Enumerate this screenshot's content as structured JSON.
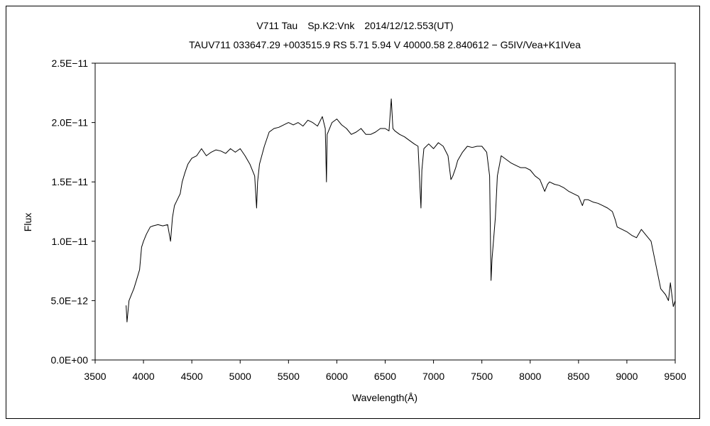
{
  "chart_data": {
    "type": "line",
    "title": "V711 Tau　Sp.K2:Vnk　2014/12/12.553(UT)",
    "subtitle": "TAUV711 033647.29 +003515.9 RS 5.71 5.94 V 40000.58 2.840612 − G5IV/Vea+K1IVea",
    "xlabel": "Wavelength(Å)",
    "ylabel": "Flux",
    "xlim": [
      3500,
      9500
    ],
    "ylim": [
      0,
      2.5e-11
    ],
    "x_ticks": [
      3500,
      4000,
      4500,
      5000,
      5500,
      6000,
      6500,
      7000,
      7500,
      8000,
      8500,
      9000,
      9500
    ],
    "x_tick_labels": [
      "3500",
      "4000",
      "4500",
      "5000",
      "5500",
      "6000",
      "6500",
      "7000",
      "7500",
      "8000",
      "8500",
      "9000",
      "9500"
    ],
    "y_ticks": [
      0,
      5e-12,
      1e-11,
      1.5e-11,
      2e-11,
      2.5e-11
    ],
    "y_tick_labels": [
      "0.0E+00",
      "5.0E−12",
      "1.0E−11",
      "1.5E−11",
      "2.0E−11",
      "2.5E−11"
    ],
    "grid": false,
    "legend": "none",
    "line_color": "#000000",
    "series": [
      {
        "x": [
          3820,
          3830,
          3850,
          3880,
          3900,
          3930,
          3960,
          3980,
          4000,
          4030,
          4070,
          4100,
          4150,
          4200,
          4250,
          4280,
          4300,
          4320,
          4350,
          4380,
          4400,
          4430,
          4460,
          4500,
          4550,
          4600,
          4650,
          4700,
          4750,
          4800,
          4850,
          4900,
          4950,
          5000,
          5050,
          5100,
          5150,
          5170,
          5180,
          5200,
          5250,
          5300,
          5350,
          5400,
          5450,
          5500,
          5550,
          5600,
          5650,
          5700,
          5750,
          5800,
          5850,
          5880,
          5893,
          5900,
          5950,
          6000,
          6050,
          6100,
          6150,
          6200,
          6250,
          6300,
          6350,
          6400,
          6450,
          6500,
          6540,
          6563,
          6580,
          6600,
          6650,
          6700,
          6750,
          6800,
          6840,
          6870,
          6880,
          6900,
          6950,
          7000,
          7050,
          7100,
          7150,
          7180,
          7200,
          7230,
          7250,
          7300,
          7350,
          7400,
          7450,
          7500,
          7550,
          7580,
          7595,
          7605,
          7620,
          7640,
          7660,
          7700,
          7750,
          7800,
          7850,
          7900,
          7950,
          8000,
          8050,
          8100,
          8150,
          8180,
          8200,
          8250,
          8300,
          8350,
          8400,
          8450,
          8500,
          8540,
          8560,
          8600,
          8650,
          8700,
          8750,
          8800,
          8850,
          8880,
          8900,
          8950,
          9000,
          9050,
          9100,
          9150,
          9200,
          9250,
          9300,
          9350,
          9400,
          9430,
          9450,
          9480,
          9500
        ],
        "y": [
          4.6e-12,
          3.2e-12,
          5e-12,
          5.6e-12,
          6e-12,
          6.8e-12,
          7.6e-12,
          9.5e-12,
          1e-11,
          1.06e-11,
          1.12e-11,
          1.13e-11,
          1.14e-11,
          1.13e-11,
          1.14e-11,
          1e-11,
          1.2e-11,
          1.3e-11,
          1.35e-11,
          1.4e-11,
          1.5e-11,
          1.58e-11,
          1.65e-11,
          1.7e-11,
          1.72e-11,
          1.78e-11,
          1.72e-11,
          1.75e-11,
          1.77e-11,
          1.76e-11,
          1.74e-11,
          1.78e-11,
          1.75e-11,
          1.78e-11,
          1.72e-11,
          1.65e-11,
          1.55e-11,
          1.28e-11,
          1.5e-11,
          1.65e-11,
          1.8e-11,
          1.92e-11,
          1.95e-11,
          1.96e-11,
          1.98e-11,
          2e-11,
          1.98e-11,
          2e-11,
          1.97e-11,
          2.02e-11,
          2e-11,
          1.97e-11,
          2.05e-11,
          1.95e-11,
          1.5e-11,
          1.9e-11,
          2e-11,
          2.03e-11,
          1.98e-11,
          1.95e-11,
          1.9e-11,
          1.92e-11,
          1.95e-11,
          1.9e-11,
          1.9e-11,
          1.92e-11,
          1.95e-11,
          1.95e-11,
          1.93e-11,
          2.2e-11,
          1.95e-11,
          1.93e-11,
          1.9e-11,
          1.88e-11,
          1.85e-11,
          1.82e-11,
          1.8e-11,
          1.28e-11,
          1.6e-11,
          1.78e-11,
          1.82e-11,
          1.78e-11,
          1.83e-11,
          1.8e-11,
          1.72e-11,
          1.52e-11,
          1.55e-11,
          1.62e-11,
          1.68e-11,
          1.75e-11,
          1.8e-11,
          1.79e-11,
          1.8e-11,
          1.8e-11,
          1.75e-11,
          1.55e-11,
          6.7e-12,
          8.5e-12,
          1e-11,
          1.2e-11,
          1.55e-11,
          1.72e-11,
          1.69e-11,
          1.66e-11,
          1.64e-11,
          1.62e-11,
          1.62e-11,
          1.6e-11,
          1.55e-11,
          1.52e-11,
          1.42e-11,
          1.48e-11,
          1.5e-11,
          1.48e-11,
          1.47e-11,
          1.45e-11,
          1.42e-11,
          1.4e-11,
          1.38e-11,
          1.3e-11,
          1.35e-11,
          1.35e-11,
          1.33e-11,
          1.32e-11,
          1.3e-11,
          1.28e-11,
          1.25e-11,
          1.18e-11,
          1.12e-11,
          1.1e-11,
          1.08e-11,
          1.05e-11,
          1.03e-11,
          1.1e-11,
          1.05e-11,
          1e-11,
          8e-12,
          6e-12,
          5.5e-12,
          5e-12,
          6.5e-12,
          4.5e-12,
          5e-12
        ]
      }
    ]
  }
}
